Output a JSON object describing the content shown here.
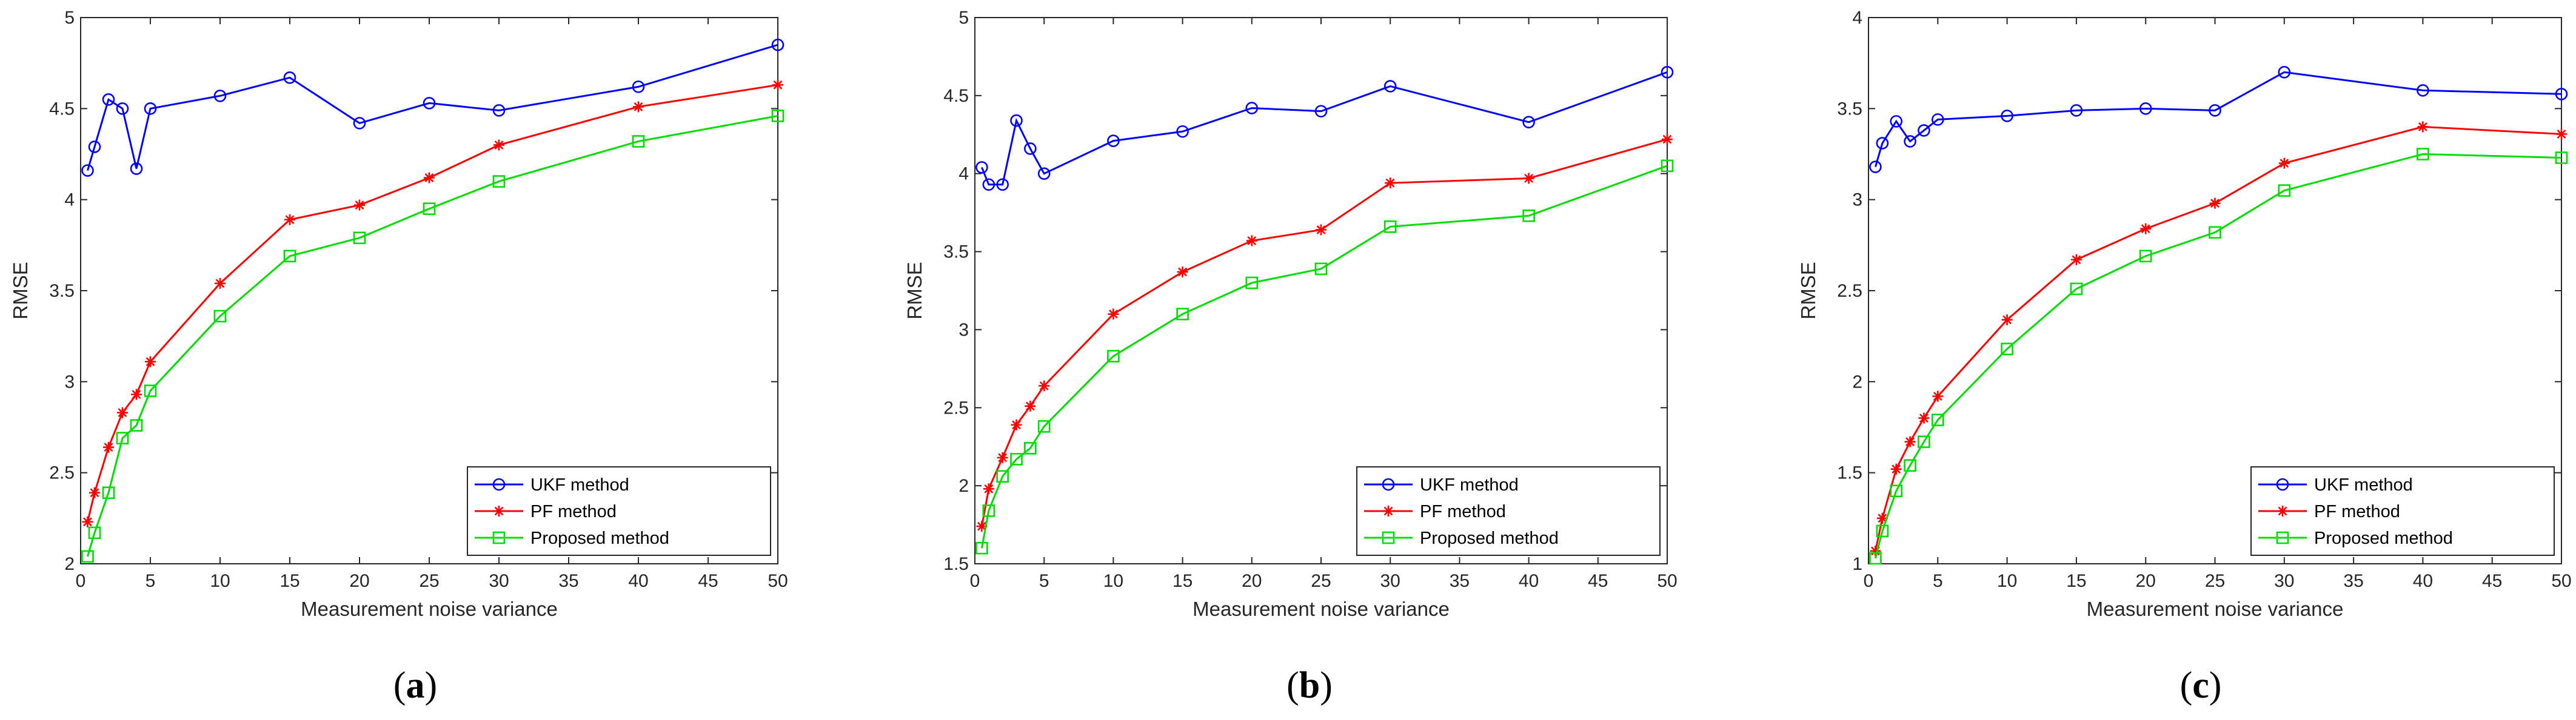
{
  "chart_data": [
    {
      "type": "line",
      "caption_letter": "a",
      "xlabel": "Measurement noise variance",
      "ylabel": "RMSE",
      "xlim": [
        0,
        50
      ],
      "ylim": [
        2,
        5
      ],
      "xticks": [
        0,
        5,
        10,
        15,
        20,
        25,
        30,
        35,
        40,
        45,
        50
      ],
      "yticks": [
        2,
        2.5,
        3,
        3.5,
        4,
        4.5,
        5
      ],
      "x": [
        0.5,
        1,
        2,
        3,
        4,
        5,
        10,
        15,
        20,
        25,
        30,
        40,
        50
      ],
      "legend_position": "bottom-right",
      "series": [
        {
          "name": "UKF method",
          "color": "#0000ff",
          "marker": "circle",
          "values": [
            4.16,
            4.29,
            4.55,
            4.5,
            4.17,
            4.5,
            4.57,
            4.67,
            4.42,
            4.53,
            4.49,
            4.62,
            4.85
          ]
        },
        {
          "name": "PF method",
          "color": "#ff0000",
          "marker": "asterisk",
          "values": [
            2.23,
            2.39,
            2.64,
            2.83,
            2.93,
            3.11,
            3.54,
            3.89,
            3.97,
            4.12,
            4.3,
            4.51,
            4.63
          ]
        },
        {
          "name": "Proposed method",
          "color": "#00dd00",
          "marker": "square",
          "values": [
            2.04,
            2.17,
            2.39,
            2.69,
            2.76,
            2.95,
            3.36,
            3.69,
            3.79,
            3.95,
            4.1,
            4.32,
            4.46
          ]
        }
      ]
    },
    {
      "type": "line",
      "caption_letter": "b",
      "xlabel": "Measurement noise variance",
      "ylabel": "RMSE",
      "xlim": [
        0,
        50
      ],
      "ylim": [
        1.5,
        5
      ],
      "xticks": [
        0,
        5,
        10,
        15,
        20,
        25,
        30,
        35,
        40,
        45,
        50
      ],
      "yticks": [
        1.5,
        2,
        2.5,
        3,
        3.5,
        4,
        4.5,
        5
      ],
      "x": [
        0.5,
        1,
        2,
        3,
        4,
        5,
        10,
        15,
        20,
        25,
        30,
        40,
        50
      ],
      "legend_position": "bottom-right",
      "series": [
        {
          "name": "UKF method",
          "color": "#0000ff",
          "marker": "circle",
          "values": [
            4.04,
            3.93,
            3.93,
            4.34,
            4.16,
            4.0,
            4.21,
            4.27,
            4.42,
            4.4,
            4.56,
            4.33,
            4.65
          ]
        },
        {
          "name": "PF method",
          "color": "#ff0000",
          "marker": "asterisk",
          "values": [
            1.74,
            1.98,
            2.18,
            2.39,
            2.51,
            2.64,
            3.1,
            3.37,
            3.57,
            3.64,
            3.94,
            3.97,
            4.22
          ]
        },
        {
          "name": "Proposed method",
          "color": "#00dd00",
          "marker": "square",
          "values": [
            1.6,
            1.84,
            2.06,
            2.17,
            2.24,
            2.38,
            2.83,
            3.1,
            3.3,
            3.39,
            3.66,
            3.73,
            4.05
          ]
        }
      ]
    },
    {
      "type": "line",
      "caption_letter": "c",
      "xlabel": "Measurement noise variance",
      "ylabel": "RMSE",
      "xlim": [
        0,
        50
      ],
      "ylim": [
        1,
        4
      ],
      "xticks": [
        0,
        5,
        10,
        15,
        20,
        25,
        30,
        35,
        40,
        45,
        50
      ],
      "yticks": [
        1,
        1.5,
        2,
        2.5,
        3,
        3.5,
        4
      ],
      "x": [
        0.5,
        1,
        2,
        3,
        4,
        5,
        10,
        15,
        20,
        25,
        30,
        40,
        50
      ],
      "legend_position": "bottom-right",
      "series": [
        {
          "name": "UKF method",
          "color": "#0000ff",
          "marker": "circle",
          "values": [
            3.18,
            3.31,
            3.43,
            3.32,
            3.38,
            3.44,
            3.46,
            3.49,
            3.5,
            3.49,
            3.7,
            3.6,
            3.58
          ]
        },
        {
          "name": "PF method",
          "color": "#ff0000",
          "marker": "asterisk",
          "values": [
            1.07,
            1.25,
            1.52,
            1.67,
            1.8,
            1.92,
            2.34,
            2.67,
            2.84,
            2.98,
            3.2,
            3.4,
            3.36
          ]
        },
        {
          "name": "Proposed method",
          "color": "#00dd00",
          "marker": "square",
          "values": [
            1.03,
            1.18,
            1.4,
            1.54,
            1.67,
            1.79,
            2.18,
            2.51,
            2.69,
            2.82,
            3.05,
            3.25,
            3.23
          ]
        }
      ]
    }
  ]
}
